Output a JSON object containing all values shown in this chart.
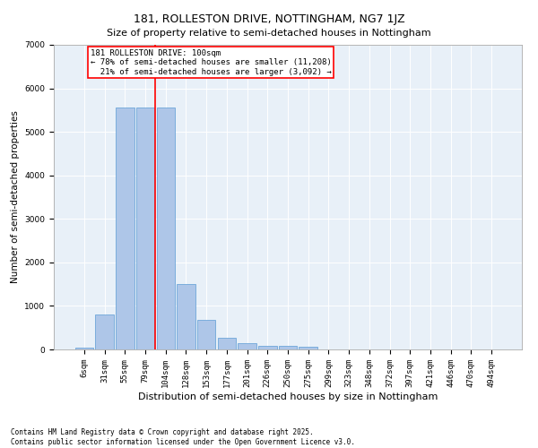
{
  "title": "181, ROLLESTON DRIVE, NOTTINGHAM, NG7 1JZ",
  "subtitle": "Size of property relative to semi-detached houses in Nottingham",
  "xlabel": "Distribution of semi-detached houses by size in Nottingham",
  "ylabel": "Number of semi-detached properties",
  "categories": [
    "6sqm",
    "31sqm",
    "55sqm",
    "79sqm",
    "104sqm",
    "128sqm",
    "153sqm",
    "177sqm",
    "201sqm",
    "226sqm",
    "250sqm",
    "275sqm",
    "299sqm",
    "323sqm",
    "348sqm",
    "372sqm",
    "397sqm",
    "421sqm",
    "446sqm",
    "470sqm",
    "494sqm"
  ],
  "values": [
    50,
    800,
    5550,
    5550,
    5550,
    1500,
    670,
    270,
    140,
    90,
    90,
    70,
    0,
    0,
    0,
    0,
    0,
    0,
    0,
    0,
    0
  ],
  "bar_color": "#aec6e8",
  "bar_edge_color": "#5b9bd5",
  "vline_color": "red",
  "vline_pos": 3.5,
  "annotation_text": "181 ROLLESTON DRIVE: 100sqm\n← 78% of semi-detached houses are smaller (11,208)\n  21% of semi-detached houses are larger (3,092) →",
  "annotation_box_color": "white",
  "annotation_box_edgecolor": "red",
  "ylim": [
    0,
    7000
  ],
  "yticks": [
    0,
    1000,
    2000,
    3000,
    4000,
    5000,
    6000,
    7000
  ],
  "bg_color": "#e8f0f8",
  "footer": "Contains HM Land Registry data © Crown copyright and database right 2025.\nContains public sector information licensed under the Open Government Licence v3.0.",
  "title_fontsize": 9,
  "subtitle_fontsize": 8,
  "xlabel_fontsize": 8,
  "ylabel_fontsize": 7.5,
  "tick_fontsize": 6.5,
  "annotation_fontsize": 6.5,
  "footer_fontsize": 5.5
}
